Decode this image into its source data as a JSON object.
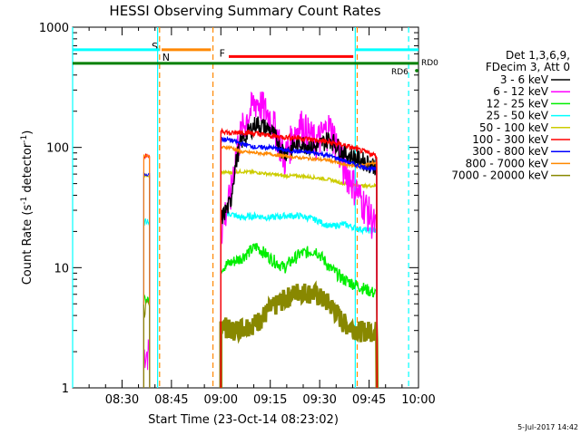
{
  "chart_data": {
    "type": "line",
    "title": "HESSI Observing Summary Count Rates",
    "xlabel": "Start Time (23-Oct-14 08:23:02)",
    "ylabel_main": "Count Rate (s",
    "ylabel_sup1": "-1",
    "ylabel_mid": " detector",
    "ylabel_sup2": "-1",
    "ylabel_end": ")",
    "yscale": "log",
    "ylim": [
      1,
      1000
    ],
    "xlim_minutes": [
      8.25,
      10.0
    ],
    "x_ticks": [
      {
        "label": "08:30",
        "t": 8.5
      },
      {
        "label": "08:45",
        "t": 8.75
      },
      {
        "label": "09:00",
        "t": 9.0
      },
      {
        "label": "09:15",
        "t": 9.25
      },
      {
        "label": "09:30",
        "t": 9.5
      },
      {
        "label": "09:45",
        "t": 9.75
      },
      {
        "label": "10:00",
        "t": 10.0
      }
    ],
    "y_ticks": [
      {
        "label": "1",
        "v": 1
      },
      {
        "label": "10",
        "v": 10
      },
      {
        "label": "100",
        "v": 100
      },
      {
        "label": "1000",
        "v": 1000
      }
    ],
    "legend_header": [
      "Det 1,3,6,9,",
      "FDecim 3, Att 0"
    ],
    "series": [
      {
        "name": "3 - 6 keV",
        "color": "#000000"
      },
      {
        "name": "6 - 12 keV",
        "color": "#ff00ff"
      },
      {
        "name": "12 - 25 keV",
        "color": "#00ee00"
      },
      {
        "name": "25 - 50 keV",
        "color": "#00ffff"
      },
      {
        "name": "50 - 100 keV",
        "color": "#cccc00"
      },
      {
        "name": "100 - 300 keV",
        "color": "#ff0000"
      },
      {
        "name": "300 - 800 keV",
        "color": "#0000ff"
      },
      {
        "name": "800 - 7000 keV",
        "color": "#ff8800"
      },
      {
        "name": "7000 - 20000 keV",
        "color": "#888800"
      }
    ],
    "segments": [
      {
        "t0": 8.61,
        "t1": 8.64,
        "levels": [
          null,
          2,
          5.5,
          24,
          58,
          85,
          60,
          85,
          4.5
        ]
      },
      {
        "t0": 9.0,
        "t1": 9.79,
        "keys": [
          9.0,
          9.05,
          9.1,
          9.18,
          9.25,
          9.32,
          9.4,
          9.48,
          9.55,
          9.62,
          9.7,
          9.79
        ],
        "levels": [
          [
            25,
            35,
            110,
            160,
            140,
            90,
            110,
            100,
            120,
            90,
            80,
            70
          ],
          [
            20,
            40,
            130,
            250,
            180,
            80,
            160,
            110,
            150,
            70,
            40,
            20
          ],
          [
            10,
            11,
            12,
            15,
            12,
            10,
            13,
            14,
            10,
            8,
            7,
            6
          ],
          [
            28,
            28,
            26,
            27,
            26,
            27,
            27,
            25,
            22,
            23,
            21,
            20
          ],
          [
            62,
            62,
            63,
            62,
            60,
            58,
            58,
            56,
            54,
            50,
            48,
            48
          ],
          [
            140,
            130,
            135,
            130,
            125,
            122,
            120,
            115,
            110,
            105,
            95,
            85
          ],
          [
            118,
            115,
            108,
            100,
            100,
            95,
            92,
            90,
            85,
            78,
            70,
            65
          ],
          [
            100,
            100,
            92,
            90,
            88,
            85,
            82,
            80,
            78,
            72,
            70,
            75
          ],
          [
            3.5,
            3,
            3.2,
            3.5,
            4.5,
            5.5,
            6.5,
            6,
            5,
            3.5,
            3,
            3
          ]
        ]
      }
    ],
    "bars": [
      {
        "label": "S",
        "t0": 8.7,
        "t1": 8.95,
        "v": 650,
        "color": "#ff8800"
      },
      {
        "label": "F",
        "t0": 9.04,
        "t1": 9.67,
        "v": 570,
        "color": "#ff0000"
      },
      {
        "label": "N",
        "t0": 8.25,
        "t1": 8.69,
        "v": 650,
        "color": "#00ffff"
      },
      {
        "label": "",
        "t0": 9.68,
        "t1": 10.0,
        "v": 650,
        "color": "#00ffff"
      }
    ],
    "horizontal_lines": [
      {
        "label": "",
        "v": 500,
        "color": "#008000"
      }
    ],
    "annotations": [
      {
        "label": "RD0",
        "color": "#008000"
      },
      {
        "label": "RD6",
        "color": "#008000"
      }
    ],
    "vlines": [
      {
        "t": 8.25,
        "color": "#00ffff",
        "style": "solid"
      },
      {
        "t": 8.68,
        "color": "#00ffff",
        "style": "solid"
      },
      {
        "t": 8.69,
        "color": "#ff8800",
        "style": "dash"
      },
      {
        "t": 8.96,
        "color": "#ff8800",
        "style": "dash"
      },
      {
        "t": 9.68,
        "color": "#00ffff",
        "style": "solid"
      },
      {
        "t": 9.69,
        "color": "#ff8800",
        "style": "dash"
      },
      {
        "t": 9.95,
        "color": "#00ffff",
        "style": "dash"
      }
    ]
  },
  "footer": {
    "date": "5-Jul-2017 14:42"
  }
}
